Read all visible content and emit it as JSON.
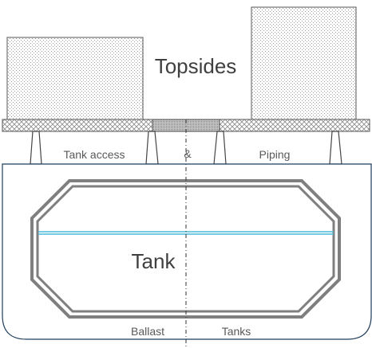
{
  "diagram": {
    "title": "Topsides",
    "tank_label": "Tank",
    "labels": {
      "tank_access": "Tank access",
      "ampersand": "&",
      "piping": "Piping",
      "ballast": "Ballast",
      "tanks": "Tanks"
    },
    "colors": {
      "stroke": "#555555",
      "tank_wall": "#7f7f7f",
      "hull": "#1f3d5c",
      "waterline": "#4bb8d8",
      "text": "#404040"
    }
  }
}
